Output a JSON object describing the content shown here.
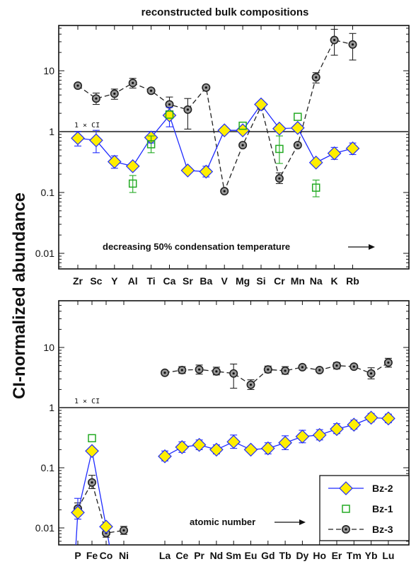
{
  "figure": {
    "title": "reconstructed bulk compositions",
    "ylabel": "CI-normalized abundance",
    "ref_label": "1 × CI",
    "legend_position": "bottom-right of lower panel"
  },
  "colors": {
    "bz2_line": "#1f2bff",
    "bz2_fill": "#ffee00",
    "bz1_marker": "#22aa22",
    "bz3_line": "#222222",
    "bz3_fill": "#9a9a9a",
    "axis": "#111111"
  },
  "chart_data": [
    {
      "type": "scatter",
      "panel": "top",
      "yscale": "log",
      "ylim": [
        0.005,
        50
      ],
      "yticks": [
        "0.01",
        "0.1",
        "1",
        "10"
      ],
      "reference_line": 1,
      "annotation": "decreasing 50% condensation temperature",
      "categories": [
        "Zr",
        "Sc",
        "Y",
        "Al",
        "Ti",
        "Ca",
        "Sr",
        "Ba",
        "V",
        "Mg",
        "Si",
        "Cr",
        "Mn",
        "Na",
        "K",
        "Rb"
      ],
      "series": [
        {
          "name": "Bz-2",
          "marker": "diamond",
          "values": [
            0.78,
            0.72,
            0.32,
            0.27,
            0.8,
            1.85,
            0.23,
            0.22,
            1.05,
            1.05,
            2.8,
            1.12,
            1.15,
            0.31,
            0.44,
            0.53
          ],
          "err_low": [
            0.58,
            0.45,
            0.25,
            null,
            0.65,
            1.2,
            null,
            0.18,
            null,
            null,
            null,
            null,
            null,
            null,
            0.35,
            0.42
          ],
          "err_high": [
            1.0,
            1.05,
            0.4,
            null,
            1.0,
            2.5,
            null,
            0.27,
            null,
            null,
            null,
            null,
            null,
            null,
            0.55,
            0.65
          ]
        },
        {
          "name": "Bz-1",
          "marker": "open-square",
          "values": [
            null,
            null,
            null,
            0.14,
            0.62,
            1.9,
            null,
            null,
            null,
            1.25,
            null,
            0.52,
            1.75,
            0.12,
            null,
            null
          ],
          "err_low": [
            null,
            null,
            null,
            0.1,
            0.45,
            null,
            null,
            null,
            null,
            null,
            null,
            0.3,
            null,
            0.085,
            null,
            null
          ],
          "err_high": [
            null,
            null,
            null,
            0.19,
            0.85,
            null,
            null,
            null,
            null,
            null,
            null,
            0.85,
            null,
            0.16,
            null,
            null
          ]
        },
        {
          "name": "Bz-3",
          "marker": "circle-dot",
          "values": [
            5.7,
            3.5,
            4.2,
            6.3,
            4.7,
            2.8,
            2.3,
            5.3,
            0.105,
            0.6,
            2.6,
            0.17,
            0.6,
            7.8,
            32,
            27
          ],
          "err_low": [
            null,
            2.8,
            3.4,
            5.2,
            null,
            2.2,
            1.1,
            null,
            null,
            null,
            null,
            0.14,
            null,
            6.3,
            18,
            15
          ],
          "err_high": [
            null,
            4.3,
            5.0,
            7.5,
            null,
            3.7,
            3.5,
            null,
            null,
            null,
            null,
            0.21,
            null,
            9.3,
            48,
            41
          ]
        }
      ]
    },
    {
      "type": "scatter",
      "panel": "bottom",
      "yscale": "log",
      "ylim": [
        0.005,
        50
      ],
      "yticks": [
        "0.01",
        "0.1",
        "1",
        "10"
      ],
      "reference_line": 1,
      "annotation": "atomic number",
      "categories": [
        "P",
        "Fe",
        "Co",
        "Ni",
        "La",
        "Ce",
        "Pr",
        "Nd",
        "Sm",
        "Eu",
        "Gd",
        "Tb",
        "Dy",
        "Ho",
        "Er",
        "Tm",
        "Yb",
        "Lu"
      ],
      "series": [
        {
          "name": "Bz-2",
          "marker": "diamond",
          "values": [
            0.018,
            0.19,
            0.0105,
            null,
            0.155,
            0.22,
            0.24,
            0.2,
            0.27,
            0.2,
            0.21,
            0.26,
            0.33,
            0.35,
            0.44,
            0.52,
            0.68,
            0.66
          ],
          "err_low": [
            0.014,
            null,
            null,
            null,
            0.13,
            0.18,
            0.2,
            0.17,
            0.21,
            null,
            0.17,
            0.2,
            0.26,
            0.29,
            0.37,
            0.44,
            0.58,
            0.56
          ],
          "err_high": [
            0.031,
            null,
            null,
            null,
            0.19,
            0.27,
            0.29,
            0.24,
            0.35,
            null,
            0.26,
            0.34,
            0.42,
            0.43,
            0.54,
            0.62,
            0.8,
            0.78
          ],
          "drop_below_axis_after": "Co"
        },
        {
          "name": "Bz-1",
          "marker": "open-square",
          "values": [
            null,
            0.31,
            null,
            null,
            null,
            null,
            null,
            null,
            null,
            null,
            null,
            null,
            null,
            null,
            null,
            null,
            null,
            null
          ]
        },
        {
          "name": "Bz-3",
          "marker": "circle-dot",
          "values": [
            0.021,
            0.057,
            0.0082,
            0.0091,
            3.8,
            4.2,
            4.3,
            4.0,
            3.7,
            2.4,
            4.3,
            4.1,
            4.7,
            4.2,
            5.0,
            4.8,
            3.7,
            5.6
          ],
          "err_low": [
            0.016,
            0.045,
            0.007,
            0.0078,
            null,
            3.7,
            3.6,
            3.5,
            2.1,
            2.0,
            3.8,
            3.6,
            null,
            null,
            4.4,
            null,
            3.0,
            4.7
          ],
          "err_high": [
            0.026,
            0.075,
            0.0098,
            0.0106,
            null,
            4.8,
            5.1,
            4.7,
            5.3,
            2.9,
            4.9,
            4.8,
            null,
            null,
            5.6,
            null,
            4.6,
            6.6
          ]
        }
      ]
    }
  ]
}
